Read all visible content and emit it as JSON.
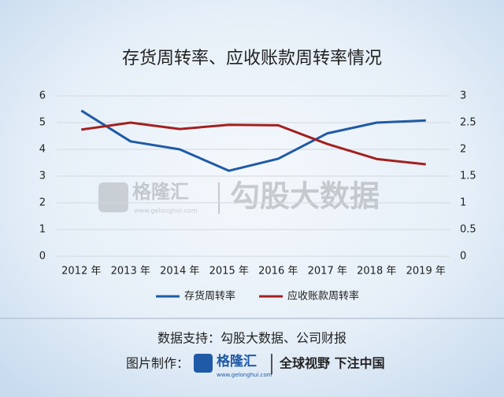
{
  "chart_data": {
    "type": "line",
    "title": "存货周转率、应收账款周转率情况",
    "categories": [
      "2012 年",
      "2013 年",
      "2014 年",
      "2015 年",
      "2016 年",
      "2017 年",
      "2018 年",
      "2019 年"
    ],
    "series": [
      {
        "name": "存货周转率",
        "color": "#1f5aa6",
        "values": [
          5.45,
          4.3,
          4.0,
          3.2,
          3.65,
          4.6,
          5.0,
          5.08
        ]
      },
      {
        "name": "应收账款周转率",
        "color": "#a3201f",
        "axis": "y2",
        "values": [
          2.37,
          2.5,
          2.38,
          2.46,
          2.45,
          2.1,
          1.82,
          1.72
        ]
      }
    ],
    "ylim": [
      0,
      6
    ],
    "yticks": [
      0,
      1,
      2,
      3,
      4,
      5,
      6
    ],
    "y2lim": [
      0,
      3
    ],
    "y2ticks": [
      0,
      0.5,
      1,
      1.5,
      2,
      2.5,
      3
    ],
    "grid": true,
    "legend": "bottom"
  },
  "watermark": {
    "brand": "格隆汇",
    "url": "www.gelonghui.com",
    "partner": "勾股大数据"
  },
  "footer": {
    "source": "数据支持：勾股大数据、公司财报",
    "maker": "图片制作：",
    "brand": "格隆汇",
    "url": "www.gelonghui.com",
    "slogan": "全球视野 下注中国"
  }
}
